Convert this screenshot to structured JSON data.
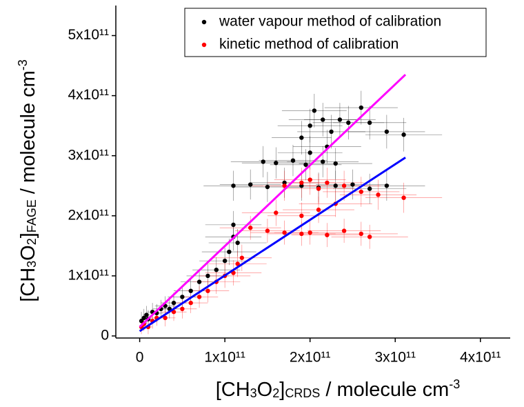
{
  "chart_data": {
    "type": "scatter",
    "xlabel": [
      [
        "[CH",
        ""
      ],
      [
        "3",
        "sub"
      ],
      [
        "O",
        ""
      ],
      [
        "2",
        "sub"
      ],
      [
        "]",
        ""
      ],
      [
        "CRDS",
        "sub"
      ],
      [
        " / molecule cm",
        ""
      ],
      [
        "-3",
        "sup"
      ]
    ],
    "ylabel": [
      [
        "[CH",
        ""
      ],
      [
        "3",
        "sub"
      ],
      [
        "O",
        ""
      ],
      [
        "2",
        "sub"
      ],
      [
        "]",
        ""
      ],
      [
        "FAGE",
        "sub"
      ],
      [
        " / molecule cm",
        ""
      ],
      [
        "-3",
        "sup"
      ]
    ],
    "xlim": [
      -28000000000.0,
      435000000000.0
    ],
    "ylim": [
      0,
      550000000000.0
    ],
    "xticks": [
      0,
      {
        "value": 100000000000.0,
        "label": "1x10¹¹"
      },
      {
        "value": 200000000000.0,
        "label": "2x10¹¹"
      },
      {
        "value": 300000000000.0,
        "label": "3x10¹¹"
      },
      {
        "value": 400000000000.0,
        "label": "4x10¹¹"
      }
    ],
    "yticks": [
      0,
      {
        "value": 100000000000.0,
        "label": "1x10¹¹"
      },
      {
        "value": 200000000000.0,
        "label": "2x10¹¹"
      },
      {
        "value": 300000000000.0,
        "label": "3x10¹¹"
      },
      {
        "value": 400000000000.0,
        "label": "4x10¹¹"
      },
      {
        "value": 500000000000.0,
        "label": "5x10¹¹"
      }
    ],
    "legend": "top",
    "series": [
      {
        "name": "water vapour method of calibration",
        "color": "#000000",
        "x": [
          2000000000.0,
          5000000000.0,
          8000000000.0,
          10000000000.0,
          15000000000.0,
          20000000000.0,
          25000000000.0,
          30000000000.0,
          35000000000.0,
          40000000000.0,
          50000000000.0,
          60000000000.0,
          70000000000.0,
          80000000000.0,
          90000000000.0,
          100000000000.0,
          105000000000.0,
          110000000000.0,
          110000000000.0,
          115000000000.0,
          110000000000.0,
          130000000000.0,
          150000000000.0,
          170000000000.0,
          190000000000.0,
          210000000000.0,
          230000000000.0,
          250000000000.0,
          270000000000.0,
          290000000000.0,
          145000000000.0,
          160000000000.0,
          180000000000.0,
          195000000000.0,
          215000000000.0,
          230000000000.0,
          190000000000.0,
          200000000000.0,
          205000000000.0,
          215000000000.0,
          225000000000.0,
          235000000000.0,
          245000000000.0,
          260000000000.0,
          270000000000.0,
          290000000000.0,
          310000000000.0,
          220000000000.0,
          200000000000.0
        ],
        "values": [
          25000000000.0,
          30000000000.0,
          35000000000.0,
          28000000000.0,
          40000000000.0,
          38000000000.0,
          45000000000.0,
          50000000000.0,
          45000000000.0,
          55000000000.0,
          65000000000.0,
          75000000000.0,
          90000000000.0,
          100000000000.0,
          110000000000.0,
          125000000000.0,
          140000000000.0,
          165000000000.0,
          185000000000.0,
          155000000000.0,
          250000000000.0,
          252000000000.0,
          248000000000.0,
          255000000000.0,
          250000000000.0,
          247000000000.0,
          250000000000.0,
          252000000000.0,
          245000000000.0,
          250000000000.0,
          290000000000.0,
          288000000000.0,
          292000000000.0,
          285000000000.0,
          290000000000.0,
          287000000000.0,
          330000000000.0,
          350000000000.0,
          375000000000.0,
          360000000000.0,
          340000000000.0,
          360000000000.0,
          355000000000.0,
          380000000000.0,
          355000000000.0,
          340000000000.0,
          335000000000.0,
          315000000000.0,
          305000000000.0
        ],
        "xerr": [
          2000000000.0,
          3000000000.0,
          4000000000.0,
          5000000000.0,
          6000000000.0,
          8000000000.0,
          10000000000.0,
          12000000000.0,
          13000000000.0,
          15000000000.0,
          17000000000.0,
          20000000000.0,
          22000000000.0,
          25000000000.0,
          28000000000.0,
          30000000000.0,
          32000000000.0,
          33000000000.0,
          33000000000.0,
          34000000000.0,
          35000000000.0,
          36000000000.0,
          38000000000.0,
          40000000000.0,
          40000000000.0,
          42000000000.0,
          42000000000.0,
          43000000000.0,
          43000000000.0,
          45000000000.0,
          38000000000.0,
          40000000000.0,
          40000000000.0,
          42000000000.0,
          42000000000.0,
          43000000000.0,
          35000000000.0,
          38000000000.0,
          38000000000.0,
          40000000000.0,
          40000000000.0,
          42000000000.0,
          42000000000.0,
          43000000000.0,
          43000000000.0,
          45000000000.0,
          45000000000.0,
          40000000000.0,
          38000000000.0
        ],
        "yerr": [
          15000000000.0,
          15000000000.0,
          15000000000.0,
          15000000000.0,
          15000000000.0,
          15000000000.0,
          15000000000.0,
          16000000000.0,
          16000000000.0,
          17000000000.0,
          18000000000.0,
          19000000000.0,
          20000000000.0,
          20000000000.0,
          21000000000.0,
          22000000000.0,
          22000000000.0,
          23000000000.0,
          23000000000.0,
          23000000000.0,
          25000000000.0,
          25000000000.0,
          25000000000.0,
          25000000000.0,
          25000000000.0,
          25000000000.0,
          25000000000.0,
          25000000000.0,
          25000000000.0,
          25000000000.0,
          26000000000.0,
          26000000000.0,
          26000000000.0,
          26000000000.0,
          26000000000.0,
          26000000000.0,
          28000000000.0,
          28000000000.0,
          28000000000.0,
          28000000000.0,
          28000000000.0,
          28000000000.0,
          28000000000.0,
          28000000000.0,
          28000000000.0,
          28000000000.0,
          28000000000.0,
          28000000000.0,
          28000000000.0
        ]
      },
      {
        "name": "kinetic method of calibration",
        "color": "#ff0000",
        "x": [
          2000000000.0,
          5000000000.0,
          10000000000.0,
          15000000000.0,
          20000000000.0,
          30000000000.0,
          40000000000.0,
          50000000000.0,
          60000000000.0,
          70000000000.0,
          80000000000.0,
          90000000000.0,
          100000000000.0,
          110000000000.0,
          115000000000.0,
          120000000000.0,
          170000000000.0,
          190000000000.0,
          200000000000.0,
          210000000000.0,
          220000000000.0,
          240000000000.0,
          260000000000.0,
          280000000000.0,
          310000000000.0,
          160000000000.0,
          190000000000.0,
          210000000000.0,
          230000000000.0,
          130000000000.0,
          150000000000.0,
          170000000000.0,
          190000000000.0,
          200000000000.0,
          220000000000.0,
          240000000000.0,
          260000000000.0,
          270000000000.0
        ],
        "values": [
          15000000000.0,
          20000000000.0,
          15000000000.0,
          25000000000.0,
          30000000000.0,
          30000000000.0,
          40000000000.0,
          45000000000.0,
          55000000000.0,
          65000000000.0,
          75000000000.0,
          90000000000.0,
          100000000000.0,
          105000000000.0,
          120000000000.0,
          130000000000.0,
          250000000000.0,
          255000000000.0,
          260000000000.0,
          245000000000.0,
          255000000000.0,
          250000000000.0,
          240000000000.0,
          235000000000.0,
          230000000000.0,
          205000000000.0,
          200000000000.0,
          210000000000.0,
          220000000000.0,
          180000000000.0,
          175000000000.0,
          172000000000.0,
          170000000000.0,
          172000000000.0,
          168000000000.0,
          175000000000.0,
          170000000000.0,
          165000000000.0
        ],
        "xerr": [
          2000000000.0,
          3000000000.0,
          5000000000.0,
          6000000000.0,
          8000000000.0,
          12000000000.0,
          15000000000.0,
          17000000000.0,
          20000000000.0,
          22000000000.0,
          25000000000.0,
          28000000000.0,
          30000000000.0,
          33000000000.0,
          34000000000.0,
          35000000000.0,
          40000000000.0,
          40000000000.0,
          42000000000.0,
          42000000000.0,
          43000000000.0,
          43000000000.0,
          45000000000.0,
          45000000000.0,
          45000000000.0,
          40000000000.0,
          40000000000.0,
          42000000000.0,
          43000000000.0,
          36000000000.0,
          38000000000.0,
          40000000000.0,
          40000000000.0,
          42000000000.0,
          42000000000.0,
          43000000000.0,
          43000000000.0,
          45000000000.0
        ],
        "yerr": [
          12000000000.0,
          12000000000.0,
          12000000000.0,
          13000000000.0,
          13000000000.0,
          14000000000.0,
          15000000000.0,
          16000000000.0,
          17000000000.0,
          18000000000.0,
          19000000000.0,
          20000000000.0,
          20000000000.0,
          21000000000.0,
          22000000000.0,
          22000000000.0,
          25000000000.0,
          25000000000.0,
          25000000000.0,
          25000000000.0,
          25000000000.0,
          25000000000.0,
          25000000000.0,
          25000000000.0,
          25000000000.0,
          22000000000.0,
          22000000000.0,
          22000000000.0,
          22000000000.0,
          20000000000.0,
          20000000000.0,
          20000000000.0,
          20000000000.0,
          20000000000.0,
          20000000000.0,
          20000000000.0,
          20000000000.0,
          20000000000.0
        ]
      }
    ],
    "fits": [
      {
        "color": "#ff00ff",
        "x": [
          0,
          312000000000.0
        ],
        "values": [
          15000000000.0,
          435000000000.0
        ]
      },
      {
        "color": "#0000ff",
        "x": [
          0,
          312000000000.0
        ],
        "values": [
          8000000000.0,
          297000000000.0
        ]
      }
    ]
  }
}
